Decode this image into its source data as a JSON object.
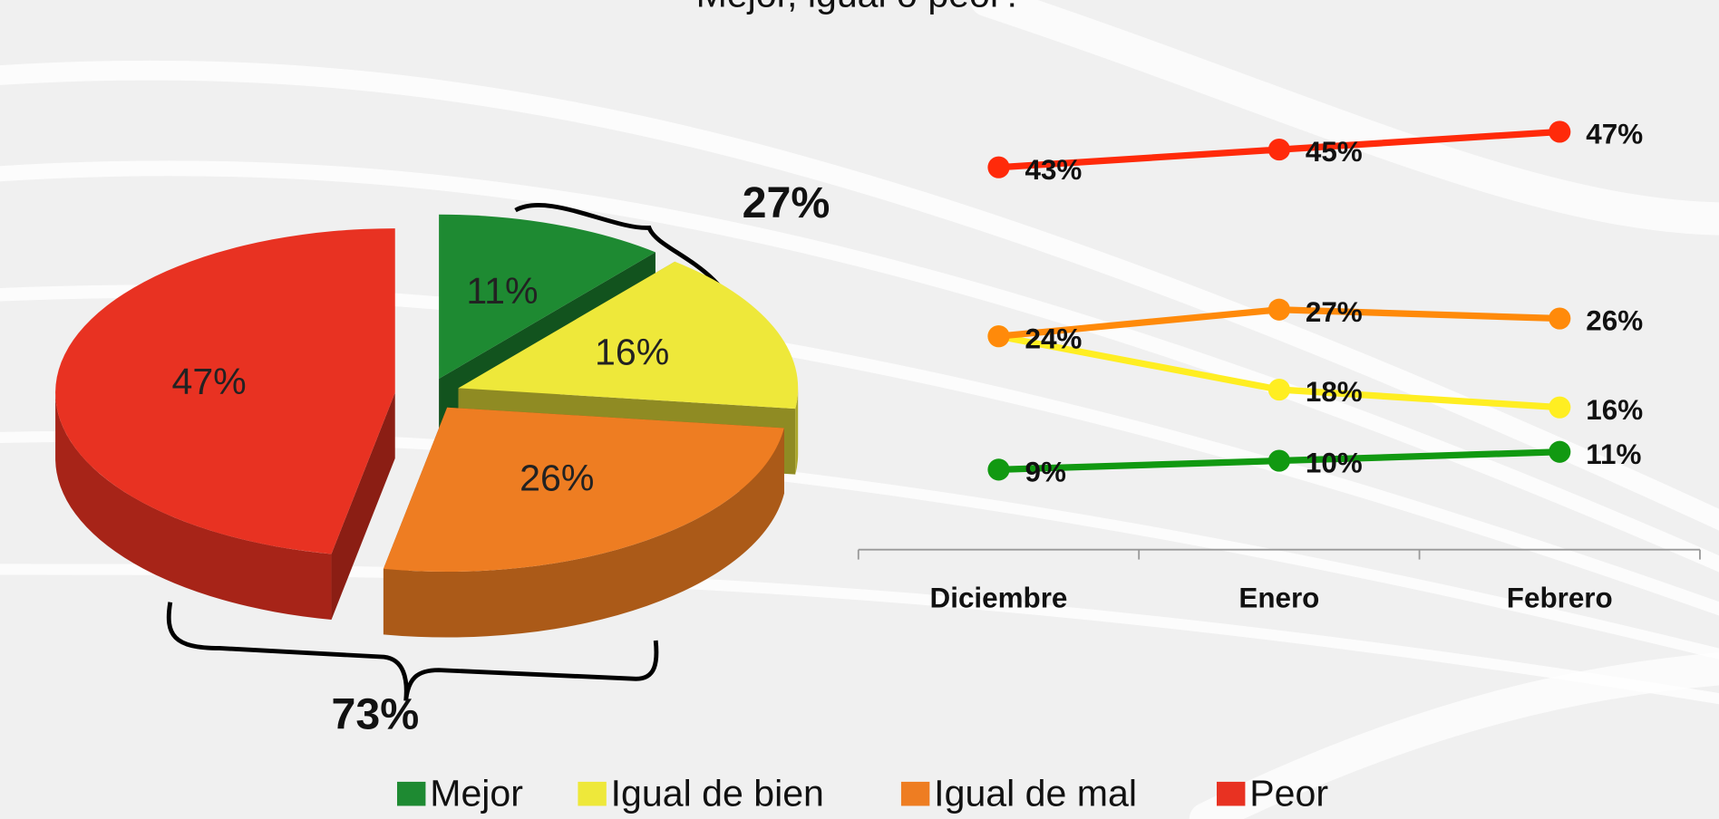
{
  "chart_data": [
    {
      "type": "pie",
      "title": "Mejor, igual o peor?",
      "categories": [
        "Mejor",
        "Igual de bien",
        "Igual de mal",
        "Peor"
      ],
      "values": [
        11,
        16,
        26,
        47
      ],
      "value_labels": [
        "11%",
        "16%",
        "26%",
        "47%"
      ],
      "colors": [
        "#1e8a32",
        "#eee83a",
        "#ee7d22",
        "#e83222"
      ],
      "annotations": [
        {
          "value": 27,
          "label": "27%"
        },
        {
          "value": 73,
          "label": "73%"
        }
      ],
      "legend": "bottom"
    },
    {
      "type": "line",
      "categories": [
        "Diciembre",
        "Enero",
        "Febrero"
      ],
      "series": [
        {
          "name": "Peor",
          "color": "#ff2a0a",
          "values": [
            43,
            45,
            47
          ],
          "value_labels": [
            "43%",
            "45%",
            "47%"
          ]
        },
        {
          "name": "Igual de mal",
          "color": "#ff8a0a",
          "values": [
            24,
            27,
            26
          ],
          "value_labels": [
            "24%",
            "27%",
            "26%"
          ]
        },
        {
          "name": "Igual de bien",
          "color": "#ffee22",
          "values": [
            24,
            18,
            16
          ],
          "value_labels": [
            "24%",
            "18%",
            "16%"
          ]
        },
        {
          "name": "Mejor",
          "color": "#119911",
          "values": [
            9,
            10,
            11
          ],
          "value_labels": [
            "9%",
            "10%",
            "11%"
          ]
        }
      ],
      "ylim": [
        0,
        50
      ]
    }
  ]
}
